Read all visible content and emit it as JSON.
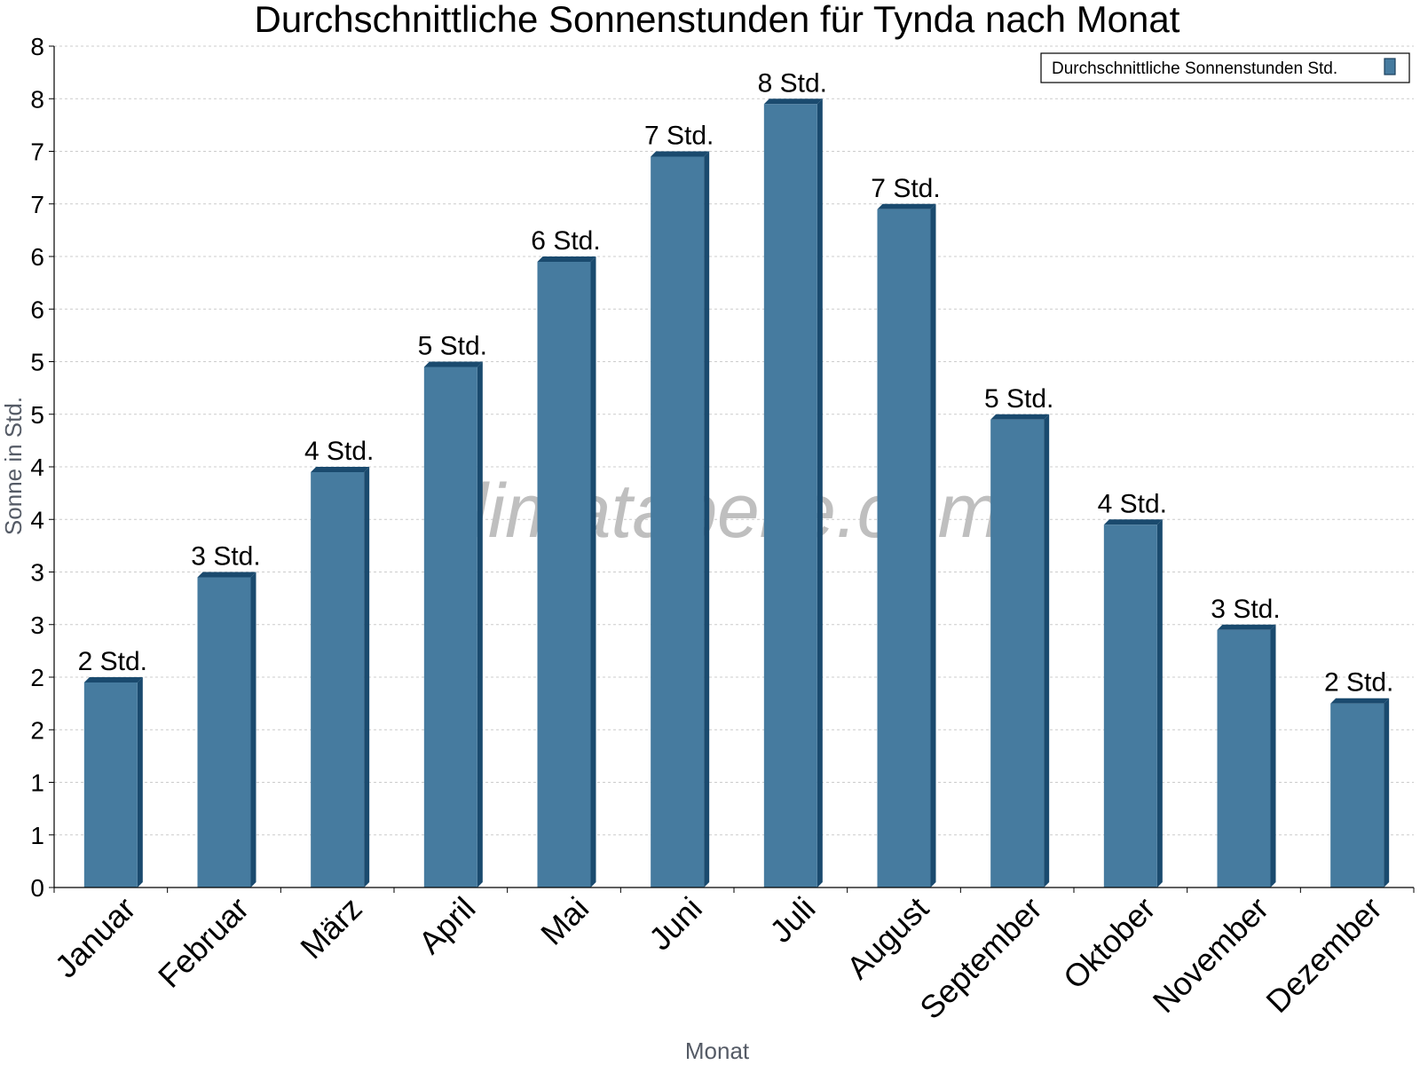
{
  "chart_data": {
    "type": "bar",
    "title": "Durchschnittliche Sonnenstunden für Tynda nach Monat",
    "xlabel": "Monat",
    "ylabel": "Sonne in Std.",
    "categories": [
      "Januar",
      "Februar",
      "März",
      "April",
      "Mai",
      "Juni",
      "Juli",
      "August",
      "September",
      "Oktober",
      "November",
      "Dezember"
    ],
    "series": [
      {
        "name": "Durchschnittliche Sonnenstunden Std.",
        "values": [
          2,
          3,
          4,
          5,
          6,
          7,
          7.5,
          6.5,
          4.5,
          3.5,
          2.5,
          1.8
        ],
        "labels": [
          "2 Std.",
          "3 Std.",
          "4 Std.",
          "5 Std.",
          "6 Std.",
          "7 Std.",
          "8 Std.",
          "7 Std.",
          "5 Std.",
          "4 Std.",
          "3 Std.",
          "2 Std."
        ]
      }
    ],
    "ylim": [
      0,
      8
    ],
    "yticks": [
      0,
      0.5,
      1,
      1.5,
      2,
      2.5,
      3,
      3.5,
      4,
      4.5,
      5,
      5.5,
      6,
      6.5,
      7,
      7.5,
      8
    ],
    "ytick_labels": [
      "0",
      "1",
      "1",
      "2",
      "2",
      "3",
      "3",
      "4",
      "4",
      "5",
      "5",
      "6",
      "6",
      "7",
      "7",
      "8",
      "8"
    ],
    "grid": true,
    "legend": "top-right",
    "colors": {
      "bar": "#467b9f",
      "bar_dark": "#1a4a6e",
      "grid": "#cccccc"
    },
    "watermark": "klimatabelle.com"
  }
}
